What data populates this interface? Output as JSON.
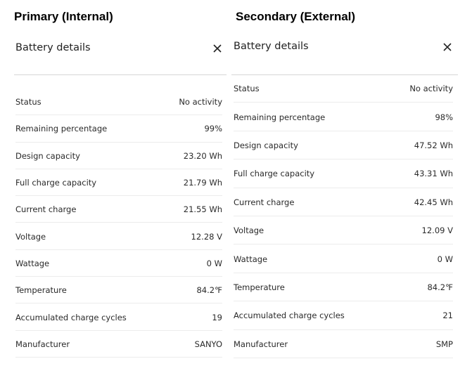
{
  "primary": {
    "heading": "Primary (Internal)",
    "title": "Battery details",
    "rows": [
      {
        "label": "Status",
        "value": "No activity"
      },
      {
        "label": "Remaining percentage",
        "value": "99%"
      },
      {
        "label": "Design capacity",
        "value": "23.20 Wh"
      },
      {
        "label": "Full charge capacity",
        "value": "21.79 Wh"
      },
      {
        "label": "Current charge",
        "value": "21.55 Wh"
      },
      {
        "label": "Voltage",
        "value": "12.28 V"
      },
      {
        "label": "Wattage",
        "value": "0 W"
      },
      {
        "label": "Temperature",
        "value": "84.2℉"
      },
      {
        "label": "Accumulated charge cycles",
        "value": "19"
      },
      {
        "label": "Manufacturer",
        "value": "SANYO"
      }
    ]
  },
  "secondary": {
    "heading": "Secondary (External)",
    "title": "Battery details",
    "rows": [
      {
        "label": "Status",
        "value": "No activity"
      },
      {
        "label": "Remaining percentage",
        "value": "98%"
      },
      {
        "label": "Design capacity",
        "value": "47.52 Wh"
      },
      {
        "label": "Full charge capacity",
        "value": "43.31 Wh"
      },
      {
        "label": "Current charge",
        "value": "42.45 Wh"
      },
      {
        "label": "Voltage",
        "value": "12.09 V"
      },
      {
        "label": "Wattage",
        "value": "0 W"
      },
      {
        "label": "Temperature",
        "value": "84.2℉"
      },
      {
        "label": "Accumulated charge cycles",
        "value": "21"
      },
      {
        "label": "Manufacturer",
        "value": "SMP"
      }
    ]
  }
}
